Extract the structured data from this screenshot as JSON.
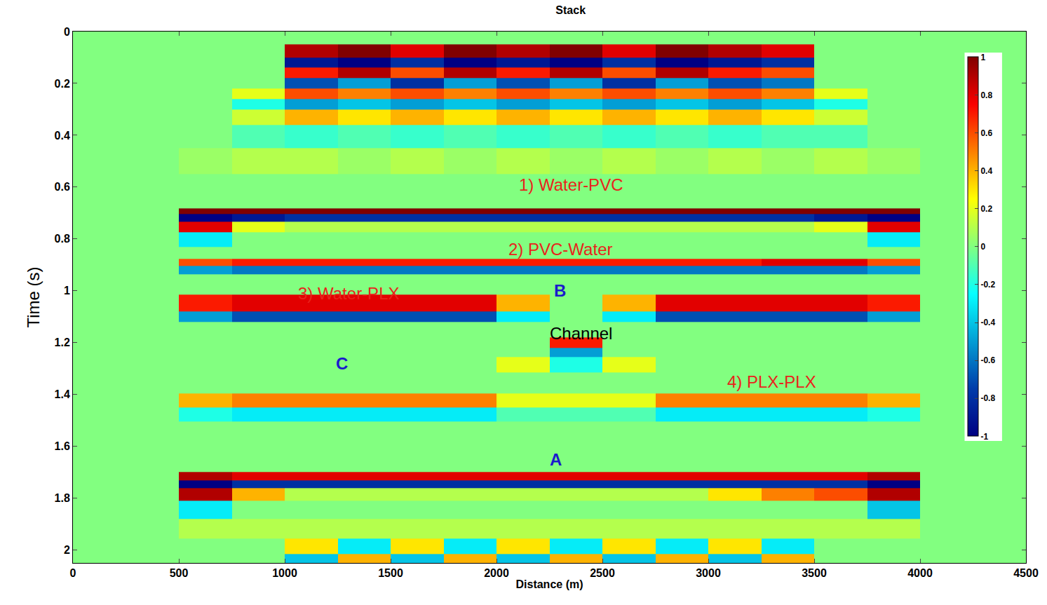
{
  "chart_data": {
    "type": "heatmap",
    "title": "Stack",
    "x_label": "Distance (m)",
    "y_label": "Time (s)",
    "xlim": [
      0,
      4500
    ],
    "xticks": [
      0,
      500,
      1000,
      1500,
      2000,
      2500,
      3000,
      3500,
      4000,
      4500
    ],
    "ylim": [
      2.05,
      0
    ],
    "yticks": [
      0,
      0.2,
      0.4,
      0.6,
      0.8,
      1,
      1.2,
      1.4,
      1.6,
      1.8,
      2
    ],
    "color_range": [
      -1,
      1
    ],
    "color_ticks": [
      -1,
      -0.8,
      -0.6,
      -0.4,
      -0.2,
      0,
      0.2,
      0.4,
      0.6,
      0.8,
      1
    ],
    "x": [
      125,
      375,
      625,
      875,
      1125,
      1375,
      1625,
      1875,
      2125,
      2375,
      2625,
      2875,
      3125,
      3375,
      3625,
      3875,
      4125,
      4375
    ],
    "y": [
      0.02,
      0.08,
      0.12,
      0.16,
      0.2,
      0.24,
      0.28,
      0.32,
      0.4,
      0.5,
      0.6,
      0.67,
      0.695,
      0.715,
      0.75,
      0.8,
      0.86,
      0.895,
      0.915,
      0.96,
      1.07,
      1.09,
      1.15,
      1.21,
      1.23,
      1.28,
      1.35,
      1.44,
      1.46,
      1.55,
      1.68,
      1.72,
      1.745,
      1.78,
      1.84,
      1.92,
      1.99,
      2.04
    ],
    "z": [
      [
        0,
        0,
        0,
        0,
        0,
        0,
        0,
        0,
        0,
        0,
        0,
        0,
        0,
        0,
        0,
        0,
        0,
        0
      ],
      [
        0,
        0,
        0,
        0,
        0.9,
        1,
        0.8,
        1,
        0.9,
        1,
        0.8,
        1,
        0.9,
        0.8,
        0,
        0,
        0,
        0
      ],
      [
        0,
        0,
        0,
        0,
        -0.9,
        -1,
        -0.8,
        -1,
        -0.9,
        -1,
        -0.8,
        -1,
        -0.9,
        -0.8,
        0,
        0,
        0,
        0
      ],
      [
        0,
        0,
        0,
        0,
        0.7,
        0.9,
        0.6,
        0.9,
        0.7,
        0.9,
        0.6,
        0.9,
        0.7,
        0.6,
        0,
        0,
        0,
        0
      ],
      [
        0,
        0,
        0,
        0,
        -0.7,
        -0.5,
        -0.8,
        -0.5,
        -0.7,
        -0.5,
        -0.8,
        -0.5,
        -0.7,
        -0.6,
        0,
        0,
        0,
        0
      ],
      [
        0,
        0,
        0,
        0.2,
        0.6,
        0.5,
        0.6,
        0.5,
        0.6,
        0.5,
        0.6,
        0.5,
        0.6,
        0.5,
        0.2,
        0,
        0,
        0
      ],
      [
        0,
        0,
        0,
        -0.2,
        -0.5,
        -0.4,
        -0.5,
        -0.4,
        -0.5,
        -0.4,
        -0.5,
        -0.4,
        -0.5,
        -0.4,
        -0.2,
        0,
        0,
        0
      ],
      [
        0,
        0,
        0,
        0.15,
        0.4,
        0.3,
        0.4,
        0.3,
        0.4,
        0.3,
        0.4,
        0.3,
        0.4,
        0.3,
        0.15,
        0,
        0,
        0
      ],
      [
        0,
        0,
        0,
        -0.1,
        -0.15,
        -0.1,
        -0.15,
        -0.1,
        -0.15,
        -0.1,
        -0.15,
        -0.1,
        -0.15,
        -0.1,
        -0.1,
        0,
        0,
        0
      ],
      [
        0,
        0,
        0.05,
        0.1,
        0.1,
        0.05,
        0.1,
        0.05,
        0.1,
        0.05,
        0.1,
        0.05,
        0.1,
        0.05,
        0.1,
        0.05,
        0,
        0
      ],
      [
        0,
        0,
        0,
        0,
        0,
        0,
        0,
        0,
        0,
        0,
        0,
        0,
        0,
        0,
        0,
        0,
        0,
        0
      ],
      [
        0,
        0,
        0,
        0,
        0,
        0,
        0,
        0,
        0,
        0,
        0,
        0,
        0,
        0,
        0,
        0,
        0,
        0
      ],
      [
        0,
        0,
        1,
        1,
        1,
        1,
        1,
        1,
        1,
        1,
        1,
        1,
        1,
        1,
        1,
        1,
        0,
        0
      ],
      [
        0,
        0,
        -1,
        -0.9,
        -0.8,
        -0.8,
        -0.8,
        -0.8,
        -0.8,
        -0.8,
        -0.8,
        -0.8,
        -0.8,
        -0.8,
        -0.9,
        -1,
        0,
        0
      ],
      [
        0,
        0,
        0.8,
        0.2,
        0.1,
        0.1,
        0.1,
        0.1,
        0.1,
        0.1,
        0.1,
        0.1,
        0.1,
        0.1,
        0.2,
        0.8,
        0,
        0
      ],
      [
        0,
        0,
        -0.3,
        0,
        0,
        0,
        0,
        0,
        0,
        0,
        0,
        0,
        0,
        0,
        0,
        -0.3,
        0,
        0
      ],
      [
        0,
        0,
        0,
        0,
        0,
        0,
        0,
        0,
        0,
        0,
        0,
        0,
        0,
        0,
        0,
        0,
        0,
        0
      ],
      [
        0,
        0,
        0.6,
        0.7,
        0.7,
        0.7,
        0.7,
        0.7,
        0.7,
        0.7,
        0.7,
        0.7,
        0.7,
        0.8,
        0.8,
        0.6,
        0,
        0
      ],
      [
        0,
        0,
        -0.5,
        -0.6,
        -0.6,
        -0.6,
        -0.6,
        -0.6,
        -0.6,
        -0.6,
        -0.6,
        -0.6,
        -0.6,
        -0.6,
        -0.6,
        -0.5,
        0,
        0
      ],
      [
        0,
        0,
        0,
        0,
        0,
        0,
        0,
        0,
        0,
        0,
        0,
        0,
        0,
        0,
        0,
        0,
        0,
        0
      ],
      [
        0,
        0,
        0.7,
        0.8,
        0.8,
        0.8,
        0.8,
        0.8,
        0.4,
        0,
        0.4,
        0.8,
        0.8,
        0.8,
        0.8,
        0.7,
        0,
        0
      ],
      [
        0,
        0,
        -0.5,
        -0.7,
        -0.7,
        -0.7,
        -0.7,
        -0.7,
        -0.3,
        0,
        -0.3,
        -0.7,
        -0.7,
        -0.7,
        -0.7,
        -0.5,
        0,
        0
      ],
      [
        0,
        0,
        0,
        0,
        0,
        0,
        0,
        0,
        0,
        0,
        0,
        0,
        0,
        0,
        0,
        0,
        0,
        0
      ],
      [
        0,
        0,
        0,
        0,
        0,
        0,
        0,
        0,
        0,
        0.7,
        0,
        0,
        0,
        0,
        0,
        0,
        0,
        0
      ],
      [
        0,
        0,
        0,
        0,
        0,
        0,
        0,
        0,
        0,
        -0.5,
        0,
        0,
        0,
        0,
        0,
        0,
        0,
        0
      ],
      [
        0,
        0,
        0,
        0,
        0,
        0,
        0,
        0,
        0.2,
        -0.2,
        0.2,
        0,
        0,
        0,
        0,
        0,
        0,
        0
      ],
      [
        0,
        0,
        0,
        0,
        0,
        0,
        0,
        0,
        0,
        0,
        0,
        0,
        0,
        0,
        0,
        0,
        0,
        0
      ],
      [
        0,
        0,
        0.4,
        0.5,
        0.5,
        0.5,
        0.5,
        0.5,
        0.2,
        0.2,
        0.2,
        0.5,
        0.5,
        0.5,
        0.5,
        0.4,
        0,
        0
      ],
      [
        0,
        0,
        -0.2,
        -0.3,
        -0.3,
        -0.3,
        -0.3,
        -0.3,
        -0.1,
        -0.1,
        -0.1,
        -0.3,
        -0.3,
        -0.3,
        -0.3,
        -0.2,
        0,
        0
      ],
      [
        0,
        0,
        0,
        0,
        0,
        0,
        0,
        0,
        0,
        0,
        0,
        0,
        0,
        0,
        0,
        0,
        0,
        0
      ],
      [
        0,
        0,
        0,
        0,
        0,
        0,
        0,
        0,
        0,
        0,
        0,
        0,
        0,
        0,
        0,
        0,
        0,
        0
      ],
      [
        0,
        0,
        0.9,
        0.8,
        0.8,
        0.8,
        0.8,
        0.8,
        0.8,
        0.8,
        0.8,
        0.8,
        0.8,
        0.8,
        0.8,
        0.9,
        0,
        0
      ],
      [
        0,
        0,
        -1,
        -0.8,
        -0.8,
        -0.8,
        -0.8,
        -0.8,
        -0.8,
        -0.8,
        -0.8,
        -0.8,
        -0.8,
        -0.8,
        -0.8,
        -1,
        0,
        0
      ],
      [
        0,
        0,
        0.9,
        0.4,
        0.1,
        0.1,
        0.1,
        0.1,
        0.1,
        0.1,
        0.1,
        0.1,
        0.3,
        0.5,
        0.6,
        0.9,
        0,
        0
      ],
      [
        0,
        0,
        -0.3,
        0,
        0,
        0,
        0,
        0,
        0,
        0,
        0,
        0,
        0,
        0,
        0,
        -0.4,
        0,
        0
      ],
      [
        0,
        0,
        0.1,
        0.1,
        0.1,
        0.1,
        0.1,
        0.1,
        0.1,
        0.1,
        0.1,
        0.1,
        0.1,
        0.1,
        0.1,
        0.1,
        0,
        0
      ],
      [
        0,
        0,
        0,
        0,
        0.3,
        -0.3,
        0.3,
        -0.3,
        0.3,
        -0.3,
        0.3,
        -0.3,
        0.3,
        -0.3,
        0,
        0,
        0,
        0
      ],
      [
        0,
        0,
        0,
        0,
        -0.4,
        0.4,
        -0.4,
        0.4,
        -0.4,
        0.4,
        -0.4,
        0.4,
        -0.4,
        0.4,
        0,
        0,
        0,
        0
      ]
    ],
    "annotations": [
      {
        "text": "1) Water-PVC",
        "x": 2350,
        "y": 0.59,
        "color": "#e8231c"
      },
      {
        "text": "2) PVC-Water",
        "x": 2300,
        "y": 0.84,
        "color": "#e8231c"
      },
      {
        "text": "3) Water-PLX",
        "x": 1300,
        "y": 1.01,
        "color": "#e8231c"
      },
      {
        "text": "B",
        "x": 2300,
        "y": 1.0,
        "color": "#1a1acc"
      },
      {
        "text": "Channel",
        "x": 2400,
        "y": 1.165,
        "color": "#000000"
      },
      {
        "text": "C",
        "x": 1270,
        "y": 1.28,
        "color": "#1a1acc"
      },
      {
        "text": "4) PLX-PLX",
        "x": 3300,
        "y": 1.35,
        "color": "#e8231c"
      },
      {
        "text": "A",
        "x": 2280,
        "y": 1.65,
        "color": "#1a1acc"
      }
    ]
  }
}
